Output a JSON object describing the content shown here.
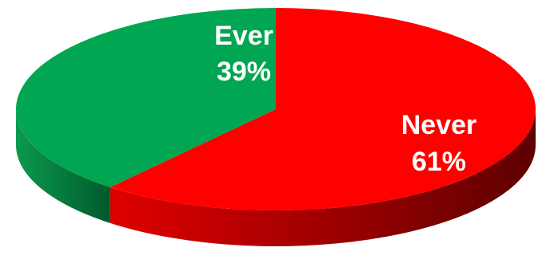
{
  "chart_data": {
    "type": "pie",
    "style": "3d",
    "slices": [
      {
        "category": "Never",
        "percent_label": "61%",
        "value": 61,
        "color": "#ff0000",
        "side_color_light": "#e00000",
        "side_color_dark": "#5e0000"
      },
      {
        "category": "Ever",
        "percent_label": "39%",
        "value": 39,
        "color": "#00a651",
        "side_color_light": "#0b9a4c",
        "side_color_dark": "#005a2c"
      }
    ],
    "legend": "none",
    "labels_on_slices": true
  }
}
